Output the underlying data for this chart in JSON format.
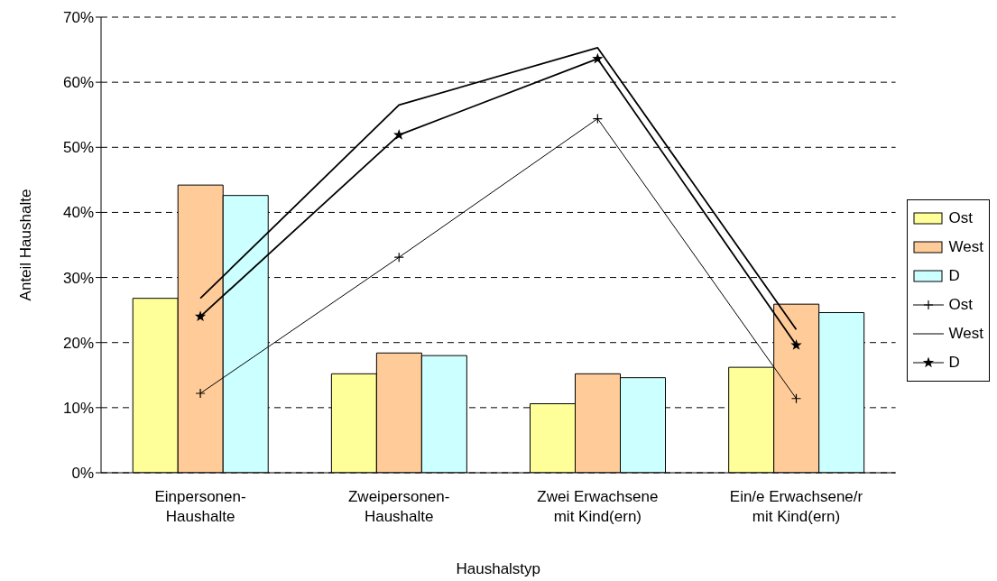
{
  "chart_data": {
    "type": "bar",
    "xlabel": "Haushalstyp",
    "ylabel": "Anteil Haushalte",
    "categories": [
      "Einpersonen-\nHaushalte",
      "Zweipersonen-\nHaushalte",
      "Zwei Erwachsene\nmit Kind(ern)",
      "Ein/e Erwachsene/r\nmit Kind(ern)"
    ],
    "series": [
      {
        "name": "Ost",
        "color": "#ffff99",
        "values": [
          26.8,
          15.2,
          10.6,
          16.2
        ]
      },
      {
        "name": "West",
        "color": "#ffcc99",
        "values": [
          44.2,
          18.4,
          15.2,
          25.9
        ]
      },
      {
        "name": "D",
        "color": "#ccffff",
        "values": [
          42.6,
          18.0,
          14.6,
          24.6
        ]
      },
      {
        "name": "Ost",
        "type": "line",
        "color": "#000000",
        "marker": "cross",
        "values": [
          12.2,
          33.1,
          54.4,
          11.4
        ]
      },
      {
        "name": "West",
        "type": "line",
        "color": "#000000",
        "marker": "none",
        "values": [
          26.8,
          56.5,
          65.3,
          22.0
        ]
      },
      {
        "name": "D",
        "type": "line",
        "color": "#000000",
        "marker": "star",
        "values": [
          24.0,
          51.9,
          63.6,
          19.6
        ]
      }
    ],
    "ylim": [
      0,
      70
    ],
    "yticks": [
      {
        "value": 0,
        "label": "0%"
      },
      {
        "value": 10,
        "label": "10%"
      },
      {
        "value": 20,
        "label": "20%"
      },
      {
        "value": 30,
        "label": "30%"
      },
      {
        "value": 40,
        "label": "40%"
      },
      {
        "value": 50,
        "label": "50%"
      },
      {
        "value": 60,
        "label": "60%"
      },
      {
        "value": 70,
        "label": "70%"
      }
    ],
    "grid": "y",
    "legend": "right"
  }
}
